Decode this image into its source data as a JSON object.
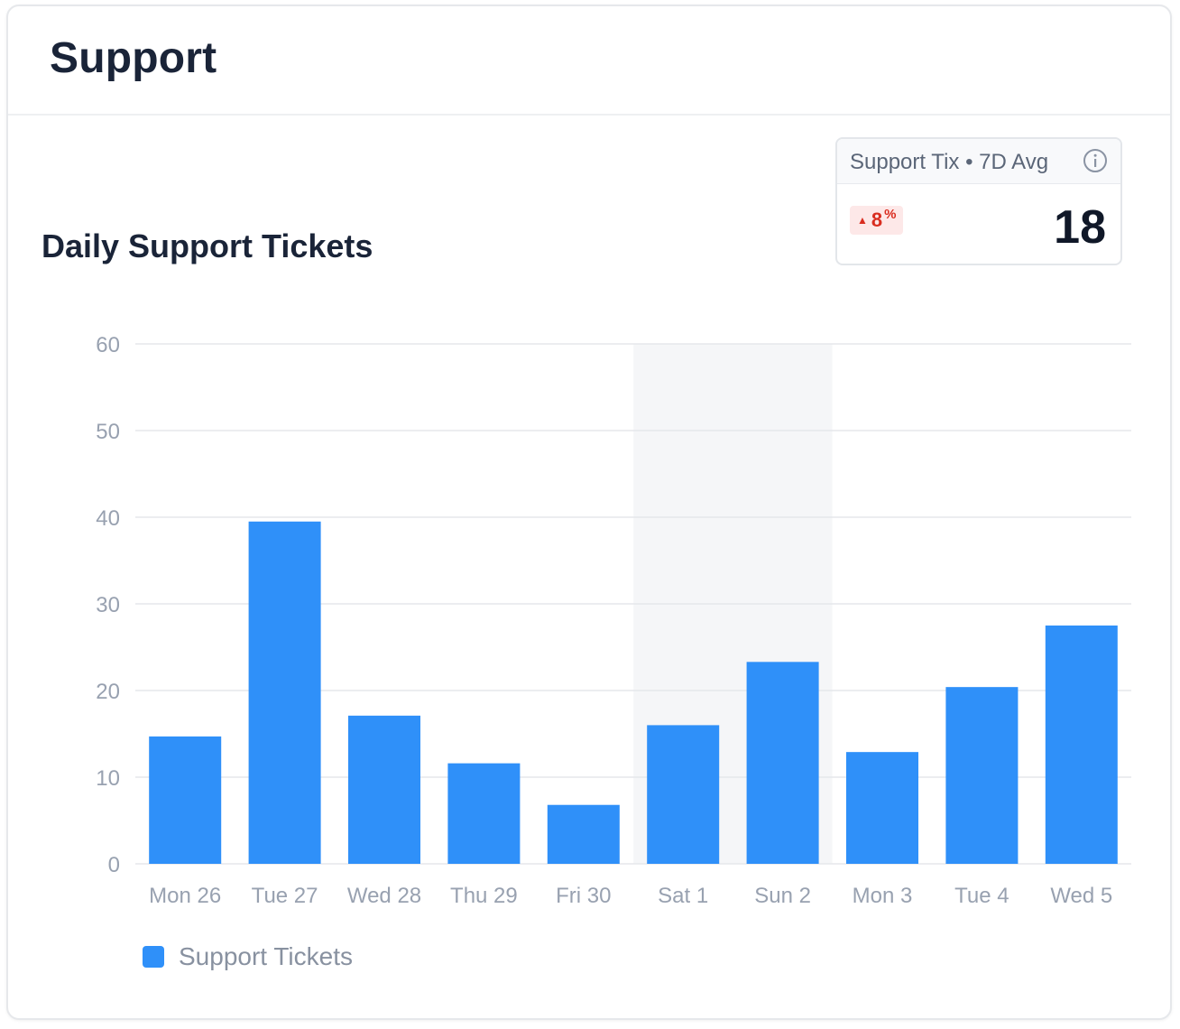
{
  "card": {
    "title": "Support"
  },
  "kpi": {
    "label": "Support Tix • 7D Avg",
    "change": "8",
    "change_unit": "%",
    "change_direction": "up",
    "value": "18",
    "change_color": "#d92d20"
  },
  "chart_data": {
    "type": "bar",
    "title": "Daily Support Tickets",
    "categories": [
      "Mon 26",
      "Tue 27",
      "Wed 28",
      "Thu 29",
      "Fri 30",
      "Sat 1",
      "Sun 2",
      "Mon 3",
      "Tue 4",
      "Wed 5"
    ],
    "series": [
      {
        "name": "Support Tickets",
        "values": [
          14.7,
          39.5,
          17.1,
          11.6,
          6.8,
          16.0,
          23.3,
          12.9,
          20.4,
          27.5
        ],
        "color": "#2f90f9"
      }
    ],
    "ylim": [
      0,
      60
    ],
    "yticks": [
      "0",
      "10",
      "20",
      "30",
      "40",
      "50",
      "60"
    ],
    "highlight_categories": [
      "Sat 1",
      "Sun 2"
    ],
    "grid": true,
    "legend_position": "bottom-left"
  }
}
